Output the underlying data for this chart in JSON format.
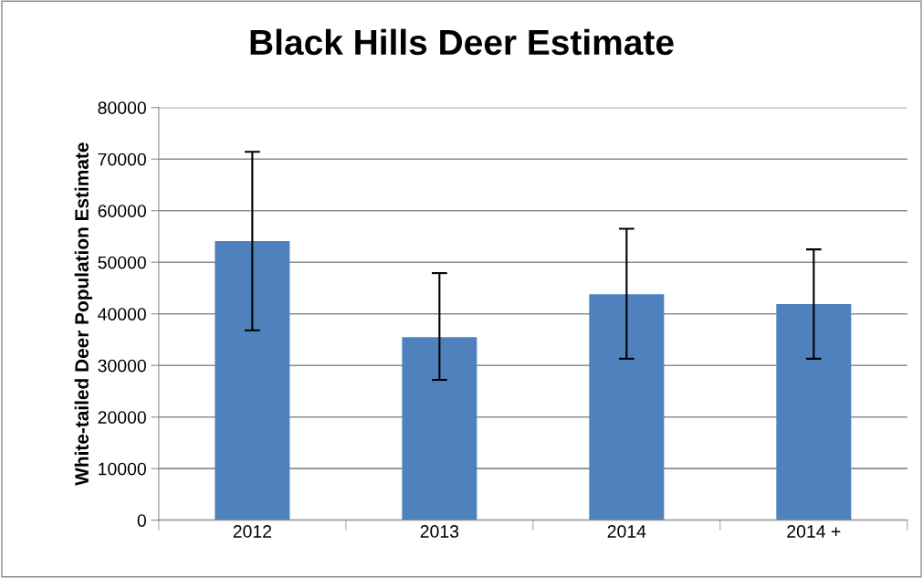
{
  "chart_data": {
    "type": "bar",
    "title": "Black Hills Deer Estimate",
    "ylabel": "White-tailed Deer Population Estimate",
    "categories": [
      "2012",
      "2013",
      "2014",
      "2014 +"
    ],
    "values": [
      54100,
      35500,
      43800,
      41900
    ],
    "errors": [
      [
        36800,
        71400
      ],
      [
        27200,
        47900
      ],
      [
        31300,
        56500
      ],
      [
        31300,
        52500
      ]
    ],
    "color": "#4f81bd",
    "ylim": [
      0,
      80000
    ],
    "yticks": [
      0,
      10000,
      20000,
      30000,
      40000,
      50000,
      60000,
      70000,
      80000
    ],
    "grid": "y",
    "legend": false
  }
}
